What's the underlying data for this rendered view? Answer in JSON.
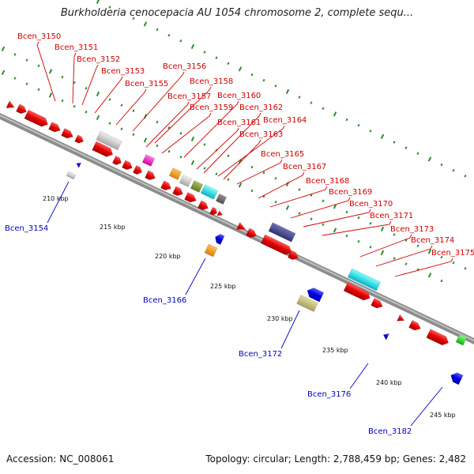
{
  "title": "Burkholderia cenocepacia AU 1054 chromosome 2, complete sequ...",
  "footer": {
    "accession": "Accession: NC_008061",
    "topology": "Topology: circular; Length: 2,788,459 bp; Genes: 2,482"
  },
  "colors": {
    "forward_gene": "#e60000",
    "reverse_gene": "#0000e6",
    "backbone": "#9a9a9a",
    "dots": "#2e8b2e",
    "forward_label": "#d10000",
    "reverse_label": "#0000c8"
  },
  "scale_labels": [
    "210 kbp",
    "215 kbp",
    "220 kbp",
    "225 kbp",
    "230 kbp",
    "235 kbp",
    "240 kbp",
    "245 kbp"
  ],
  "forward_labels": [
    "Bcen_3150",
    "Bcen_3151",
    "Bcen_3152",
    "Bcen_3153",
    "Bcen_3155",
    "Bcen_3156",
    "Bcen_3157",
    "Bcen_3158",
    "Bcen_3159",
    "Bcen_3160",
    "Bcen_3161",
    "Bcen_3162",
    "Bcen_3163",
    "Bcen_3164",
    "Bcen_3165",
    "Bcen_3167",
    "Bcen_3168",
    "Bcen_3169",
    "Bcen_3170",
    "Bcen_3171",
    "Bcen_3173",
    "Bcen_3174",
    "Bcen_3175"
  ],
  "reverse_labels": [
    "Bcen_3154",
    "Bcen_3166",
    "Bcen_3172",
    "Bcen_3176",
    "Bcen_3182"
  ]
}
